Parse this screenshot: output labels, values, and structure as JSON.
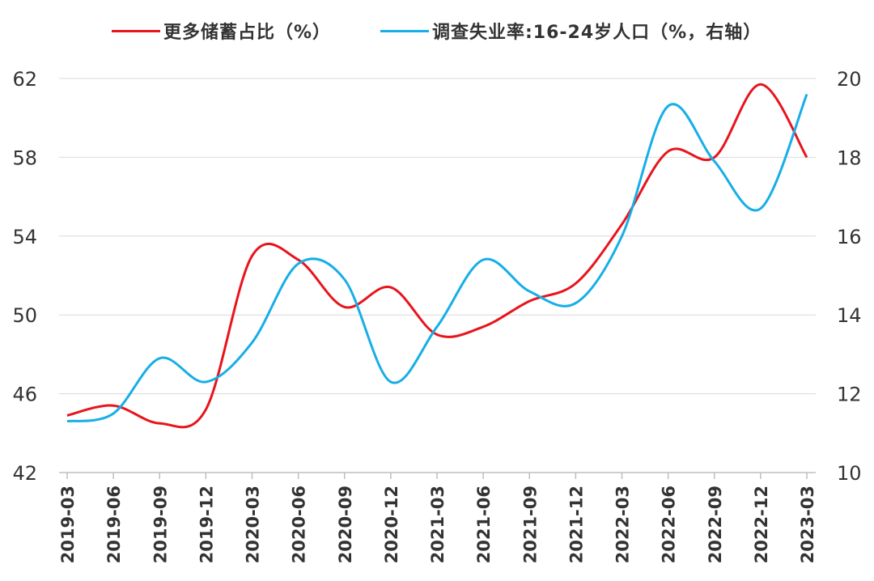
{
  "colors": {
    "savings": "#e8141c",
    "unemployment": "#17aee8",
    "grid": "#d9d9d9",
    "text": "#333333"
  },
  "chart_data": {
    "type": "line",
    "x": [
      "2019-03",
      "2019-06",
      "2019-09",
      "2019-12",
      "2020-03",
      "2020-06",
      "2020-09",
      "2020-12",
      "2021-03",
      "2021-06",
      "2021-09",
      "2021-12",
      "2022-03",
      "2022-06",
      "2022-09",
      "2022-12",
      "2023-03"
    ],
    "series": [
      {
        "name": "更多储蓄占比（%）",
        "axis": "left",
        "color": "#e8141c",
        "values": [
          44.9,
          45.4,
          44.5,
          45.2,
          53.0,
          52.8,
          50.4,
          51.4,
          49.0,
          49.4,
          50.7,
          51.6,
          54.6,
          58.3,
          58.0,
          61.7,
          58.0
        ]
      },
      {
        "name": "调查失业率:16-24岁人口（%，右轴）",
        "axis": "right",
        "color": "#17aee8",
        "values": [
          11.3,
          11.5,
          12.9,
          12.3,
          13.3,
          15.3,
          14.9,
          12.3,
          13.7,
          15.4,
          14.6,
          14.3,
          16.0,
          19.3,
          17.9,
          16.7,
          19.6
        ]
      }
    ],
    "y_left": {
      "min": 42,
      "max": 62,
      "ticks": [
        42,
        46,
        50,
        54,
        58,
        62
      ]
    },
    "y_right": {
      "min": 10,
      "max": 20,
      "ticks": [
        10,
        12,
        14,
        16,
        18,
        20
      ]
    },
    "grid": true,
    "legend_position": "top-center"
  }
}
